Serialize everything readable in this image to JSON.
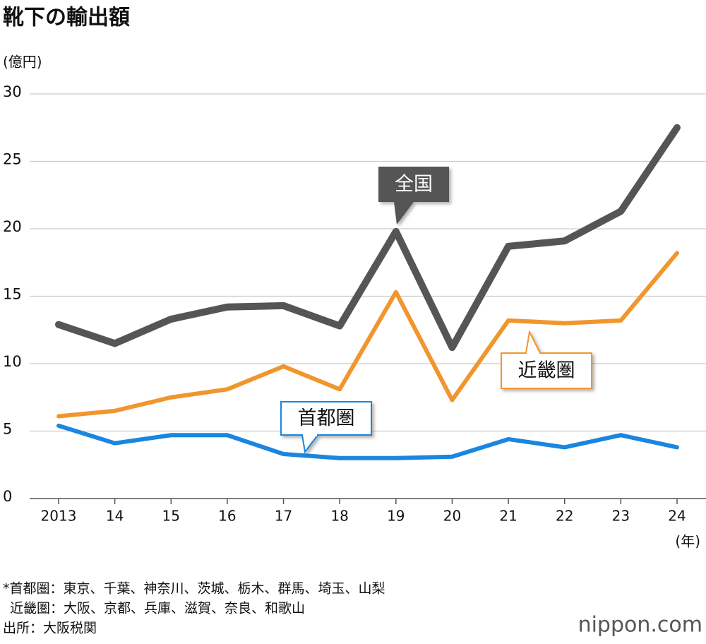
{
  "chart_data": {
    "type": "line",
    "title": "靴下の輸出額",
    "y_unit": "(億円)",
    "x_unit": "(年)",
    "categories": [
      "2013",
      "14",
      "15",
      "16",
      "17",
      "18",
      "19",
      "20",
      "21",
      "22",
      "23",
      "24"
    ],
    "series": [
      {
        "name": "全国",
        "color": "#555555",
        "values": [
          12.9,
          11.5,
          13.3,
          14.2,
          14.3,
          12.8,
          19.8,
          11.2,
          18.7,
          19.1,
          21.3,
          27.5
        ]
      },
      {
        "name": "近畿圏",
        "color": "#f0962d",
        "values": [
          6.1,
          6.5,
          7.5,
          8.1,
          9.8,
          8.1,
          15.3,
          7.3,
          13.2,
          13.0,
          13.2,
          18.2
        ]
      },
      {
        "name": "首都圏",
        "color": "#1a86e0",
        "values": [
          5.4,
          4.1,
          4.7,
          4.7,
          3.3,
          3.0,
          3.0,
          3.1,
          4.4,
          3.8,
          4.7,
          3.8
        ]
      }
    ],
    "ylim": [
      0,
      30
    ],
    "yticks": [
      0,
      5,
      10,
      15,
      20,
      25,
      30
    ],
    "grid": true,
    "notes": [
      "*首都圏：東京、千葉、神奈川、茨城、栃木、群馬、埼玉、山梨",
      "近畿圏：大阪、京都、兵庫、滋賀、奈良、和歌山",
      "出所：大阪税関"
    ],
    "logo": "nippon.com"
  }
}
